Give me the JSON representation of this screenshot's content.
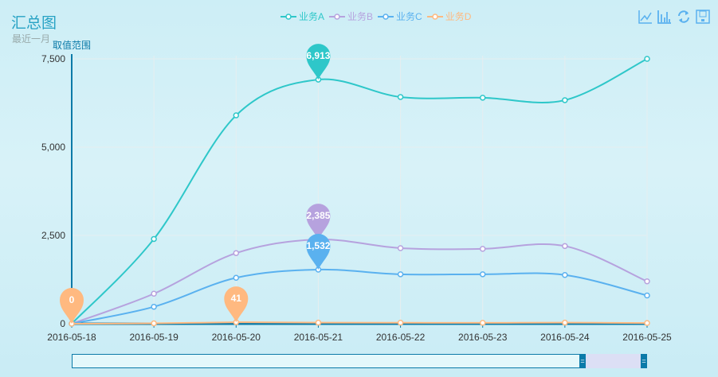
{
  "title": "汇总图",
  "subtitle": "最近一月",
  "toolbox": [
    "line-chart-icon",
    "bar-chart-icon",
    "refresh-icon",
    "save-icon"
  ],
  "chart_data": {
    "type": "line",
    "title": "汇总图",
    "subtitle": "最近一月",
    "ylabel": "取值范围",
    "xlabel": "",
    "categories": [
      "2016-05-18",
      "2016-05-19",
      "2016-05-20",
      "2016-05-21",
      "2016-05-22",
      "2016-05-23",
      "2016-05-24",
      "2016-05-25"
    ],
    "ylim": [
      0,
      7500
    ],
    "yticks": [
      "0",
      "2,500",
      "5,000",
      "7,500"
    ],
    "grid": true,
    "legend_position": "top-center",
    "series": [
      {
        "name": "业务A",
        "color": "#2ec7c9",
        "values": [
          0,
          2400,
          5900,
          6913,
          6420,
          6400,
          6330,
          7500
        ],
        "markpoint": {
          "label": "6,913",
          "index": 3
        }
      },
      {
        "name": "业务B",
        "color": "#b6a2de",
        "values": [
          0,
          850,
          2000,
          2385,
          2140,
          2120,
          2200,
          1200
        ],
        "markpoint": {
          "label": "2,385",
          "index": 3
        }
      },
      {
        "name": "业务C",
        "color": "#5ab1ef",
        "values": [
          0,
          480,
          1300,
          1532,
          1400,
          1400,
          1380,
          800
        ],
        "markpoint": {
          "label": "1,532",
          "index": 3
        }
      },
      {
        "name": "业务D",
        "color": "#ffb980",
        "values": [
          0,
          10,
          41,
          30,
          28,
          25,
          30,
          20
        ],
        "markpoints": [
          {
            "label": "0",
            "index": 0
          },
          {
            "label": "41",
            "index": 2
          }
        ]
      }
    ]
  }
}
